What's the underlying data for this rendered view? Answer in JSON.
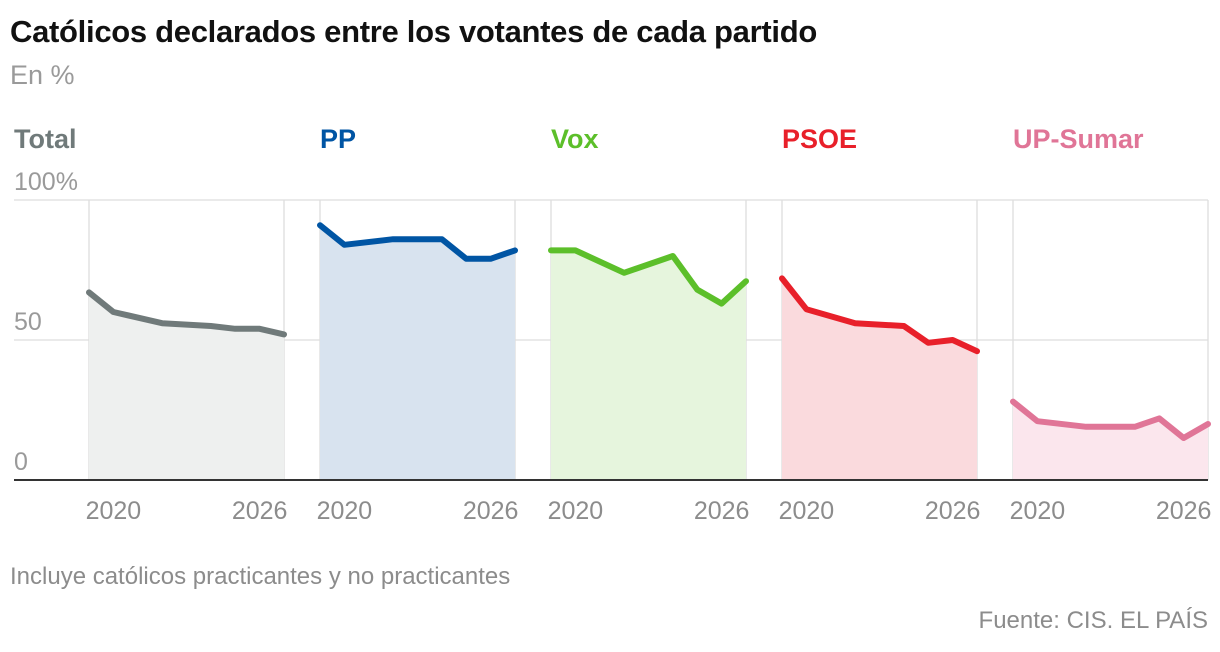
{
  "title": "Católicos declarados entre los votantes de cada partido",
  "subtitle": "En %",
  "note": "Incluye católicos practicantes y no practicantes",
  "source": "Fuente: CIS. EL PAÍS",
  "chart_data": {
    "type": "area",
    "layout": "small-multiples",
    "x": [
      2019,
      2020,
      2022,
      2024,
      2025,
      2026,
      2027
    ],
    "ylim": [
      0,
      100
    ],
    "y_ticks": [
      0,
      50,
      100
    ],
    "y_tick_labels": [
      "0",
      "50",
      "100%"
    ],
    "x_ticks": [
      2020,
      2026
    ],
    "x_tick_labels": [
      "2020",
      "2026"
    ],
    "grid": true,
    "series": [
      {
        "name": "Total",
        "color": "#707a7a",
        "fill": "#eef0ef",
        "values": [
          67,
          60,
          56,
          55,
          54,
          54,
          52
        ]
      },
      {
        "name": "PP",
        "color": "#0055a4",
        "fill": "#d8e3ef",
        "values": [
          91,
          84,
          86,
          86,
          79,
          79,
          82
        ]
      },
      {
        "name": "Vox",
        "color": "#5cbf2a",
        "fill": "#e6f5dd",
        "values": [
          82,
          82,
          74,
          80,
          68,
          63,
          71
        ]
      },
      {
        "name": "PSOE",
        "color": "#e8202a",
        "fill": "#fadadd",
        "values": [
          72,
          61,
          56,
          55,
          49,
          50,
          46
        ]
      },
      {
        "name": "UP-Sumar",
        "color": "#e07597",
        "fill": "#fbe6ed",
        "values": [
          28,
          21,
          19,
          19,
          22,
          15,
          20
        ]
      }
    ]
  }
}
